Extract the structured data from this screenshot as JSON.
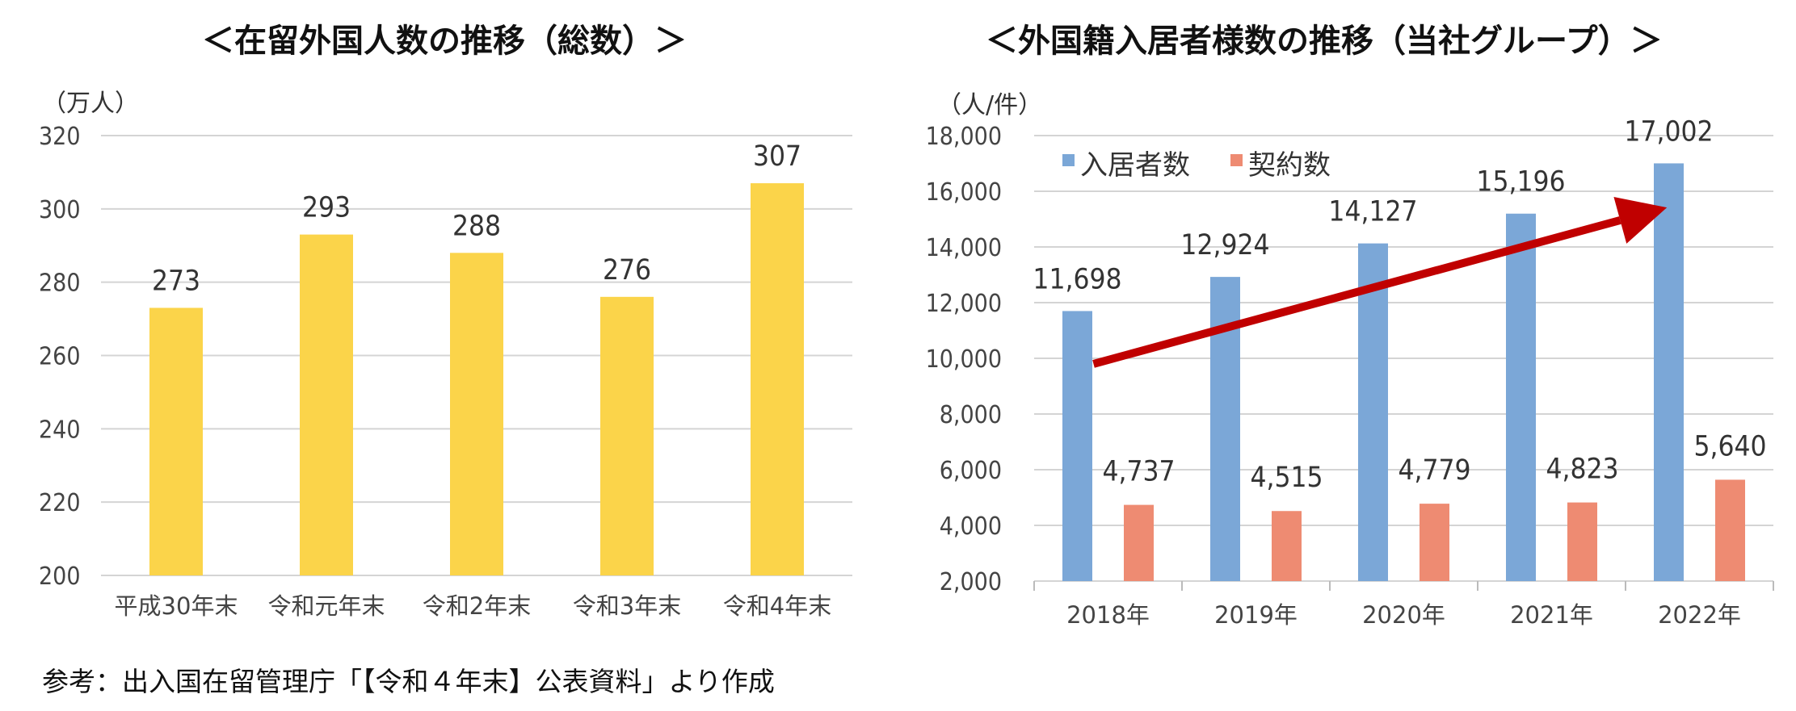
{
  "left_title": "＜在留外国人数の推移（総数）＞",
  "right_title": "＜外国籍入居者様数の推移（当社グループ）＞",
  "footnote": "参考：出入国在留管理庁「【令和４年末】公表資料」より作成",
  "chart_data": [
    {
      "type": "bar",
      "title": "＜在留外国人数の推移（総数）＞",
      "unit_label": "（万人）",
      "categories": [
        "平成30年末",
        "令和元年末",
        "令和2年末",
        "令和3年末",
        "令和4年末"
      ],
      "values": [
        273,
        293,
        288,
        276,
        307
      ],
      "value_labels": [
        "273",
        "293",
        "288",
        "276",
        "307"
      ],
      "ylim": [
        200,
        320
      ],
      "yticks": [
        "200",
        "220",
        "240",
        "260",
        "280",
        "300",
        "320"
      ],
      "grid": true,
      "color": "#FBD44A"
    },
    {
      "type": "bar",
      "title": "＜外国籍入居者様数の推移（当社グループ）＞",
      "unit_label": "（人/件）",
      "categories": [
        "2018年",
        "2019年",
        "2020年",
        "2021年",
        "2022年"
      ],
      "series": [
        {
          "name": "入居者数",
          "color": "#7BA7D7",
          "values": [
            11698,
            12924,
            14127,
            15196,
            17002
          ],
          "value_labels": [
            "11,698",
            "12,924",
            "14,127",
            "15,196",
            "17,002"
          ]
        },
        {
          "name": "契約数",
          "color": "#EE8B72",
          "values": [
            4737,
            4515,
            4779,
            4823,
            5640
          ],
          "value_labels": [
            "4,737",
            "4,515",
            "4,779",
            "4,823",
            "5,640"
          ]
        }
      ],
      "ylim": [
        2000,
        18000
      ],
      "yticks": [
        "2,000",
        "4,000",
        "6,000",
        "8,000",
        "10,000",
        "12,000",
        "14,000",
        "16,000",
        "18,000"
      ],
      "grid": true,
      "legend_position": "top-left",
      "annotation": {
        "type": "arrow",
        "color": "#C00000",
        "from": {
          "x": "2018年",
          "y": 9800
        },
        "to": {
          "x": "2022年",
          "y": 15500
        }
      }
    }
  ]
}
